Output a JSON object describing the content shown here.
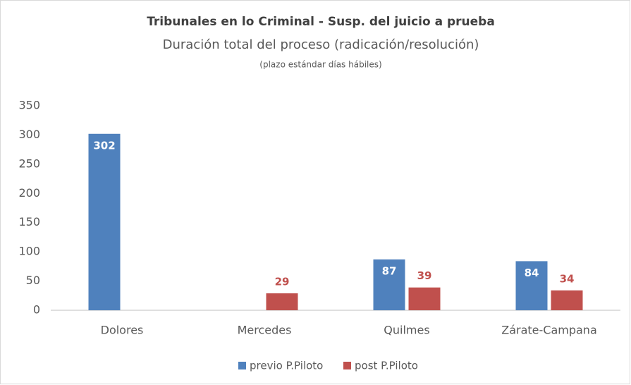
{
  "chart_data": {
    "type": "bar",
    "title": "Tribunales en lo Criminal - Susp. del juicio a prueba",
    "subtitle": "Duración total del proceso (radicación/resolución)",
    "note": "(plazo estándar días hábiles)",
    "categories": [
      "Dolores",
      "Mercedes",
      "Quilmes",
      "Zárate-Campana"
    ],
    "series": [
      {
        "name": "previo P.Piloto",
        "color": "#4f81bd",
        "values": [
          302,
          null,
          87,
          84
        ]
      },
      {
        "name": "post P.Piloto",
        "color": "#c0504d",
        "values": [
          null,
          29,
          39,
          34
        ]
      }
    ],
    "ylim": [
      0,
      350
    ],
    "yticks": [
      0,
      50,
      100,
      150,
      200,
      250,
      300,
      350
    ],
    "grid": false,
    "legend": "bottom"
  }
}
